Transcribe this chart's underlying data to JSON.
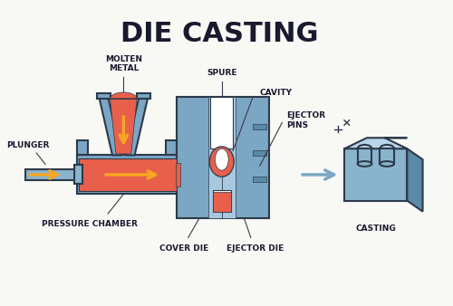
{
  "title": "DIE CASTING",
  "title_fontsize": 22,
  "title_fontweight": "bold",
  "title_color": "#1a1a2e",
  "bg_color": "#f5f5f0",
  "labels": {
    "plunger": "PLUNGER",
    "molten_metal": "MOLTEN\nMETAL",
    "pressure_chamber": "PRESSURE CHAMBER",
    "spure": "SPURE",
    "cavity": "CAVITY",
    "ejector_pins": "EJECTOR\nPINS",
    "cover_die": "COVER DIE",
    "ejector_die": "EJECTOR DIE",
    "casting": "CASTING"
  },
  "colors": {
    "molten": "#e8604c",
    "die_body": "#7ba7c4",
    "die_body_dark": "#5a8aaa",
    "die_inner": "#a8c8e0",
    "cavity_fill": "#ffffff",
    "arrow_orange": "#f5a623",
    "arrow_blue": "#7ba7c4",
    "outline": "#2d3a4a",
    "casting_body": "#8ab4cc",
    "casting_shine": "#b8d4e8",
    "plunger_body": "#8ab4cc",
    "background": "#f8f8f5",
    "label_line": "#3a3a4a"
  }
}
